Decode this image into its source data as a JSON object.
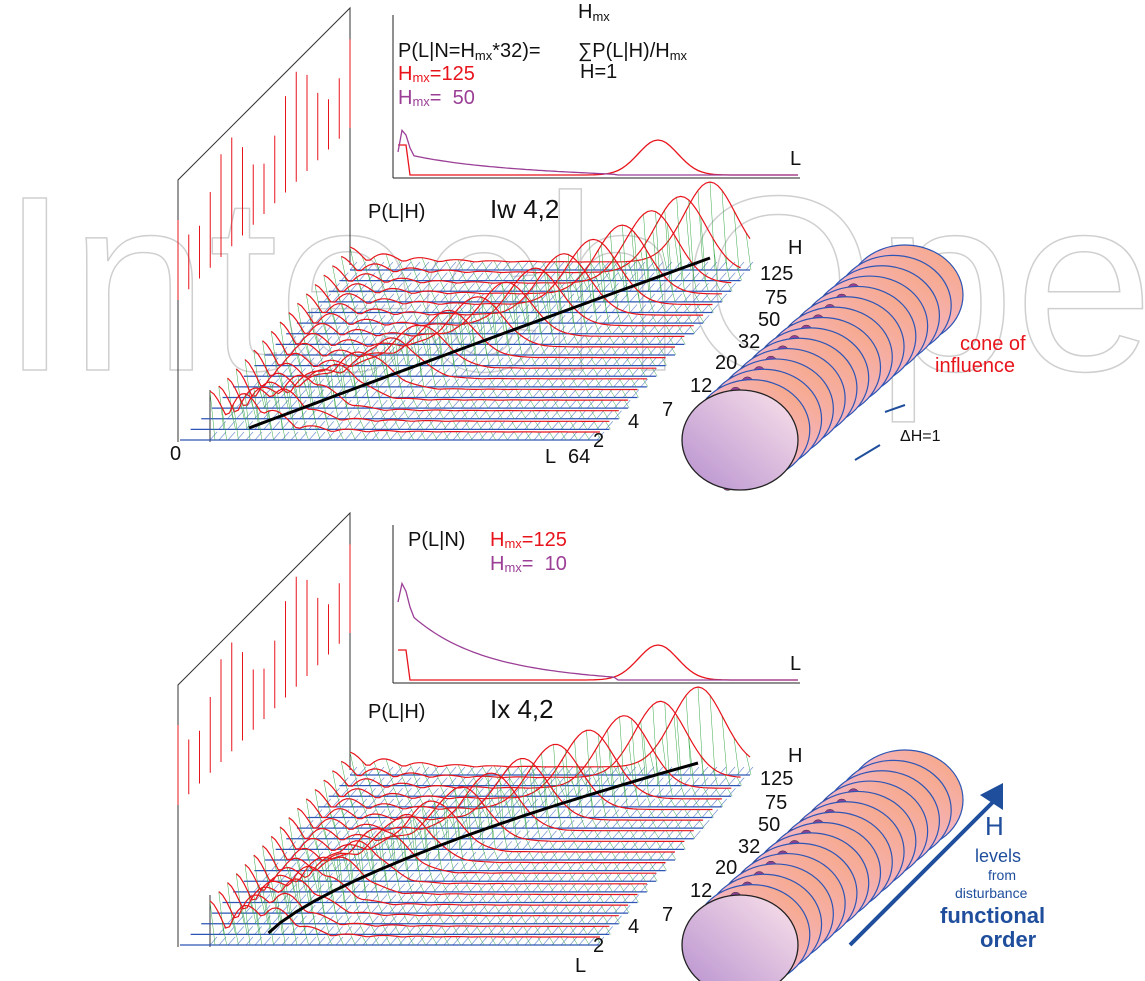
{
  "watermark": "IntechOpen",
  "top": {
    "formula": {
      "left": "P(L|N=H",
      "left_sub": "mx",
      "left_end": "*32)=",
      "sum": "∑",
      "upper": "H",
      "upper_sub": "mx",
      "lower": "H=1",
      "term": "P(L|H)/H",
      "term_sub": "mx"
    },
    "legend": [
      {
        "H": "H",
        "sub": "mx",
        "text": "=125"
      },
      {
        "H": "H",
        "sub": "mx",
        "text": "=  50"
      }
    ],
    "inset_axis": "L",
    "y_label": "P(L|H)",
    "title": "Iw 4,2",
    "h_axis": "H",
    "h_ticks": [
      "125",
      "75",
      "50",
      "32",
      "20",
      "12",
      "7",
      "4",
      "2"
    ],
    "origin": "0",
    "l_axis": "L",
    "l_max": "64",
    "cone": [
      "cone of",
      "influence"
    ],
    "delta": "ΔH=1"
  },
  "bottom": {
    "inset_label": "P(L|N)",
    "legend": [
      {
        "H": "H",
        "sub": "mx",
        "text": "=125"
      },
      {
        "H": "H",
        "sub": "mx",
        "text": "=  10"
      }
    ],
    "inset_axis": "L",
    "y_label": "P(L|H)",
    "title": "Ix 4,2",
    "h_axis": "H",
    "h_ticks": [
      "125",
      "75",
      "50",
      "32",
      "20",
      "12",
      "7",
      "4",
      "2"
    ],
    "l_axis": "L",
    "annotation": [
      "H",
      "levels",
      "from",
      "disturbance",
      "functional",
      "order"
    ]
  }
}
